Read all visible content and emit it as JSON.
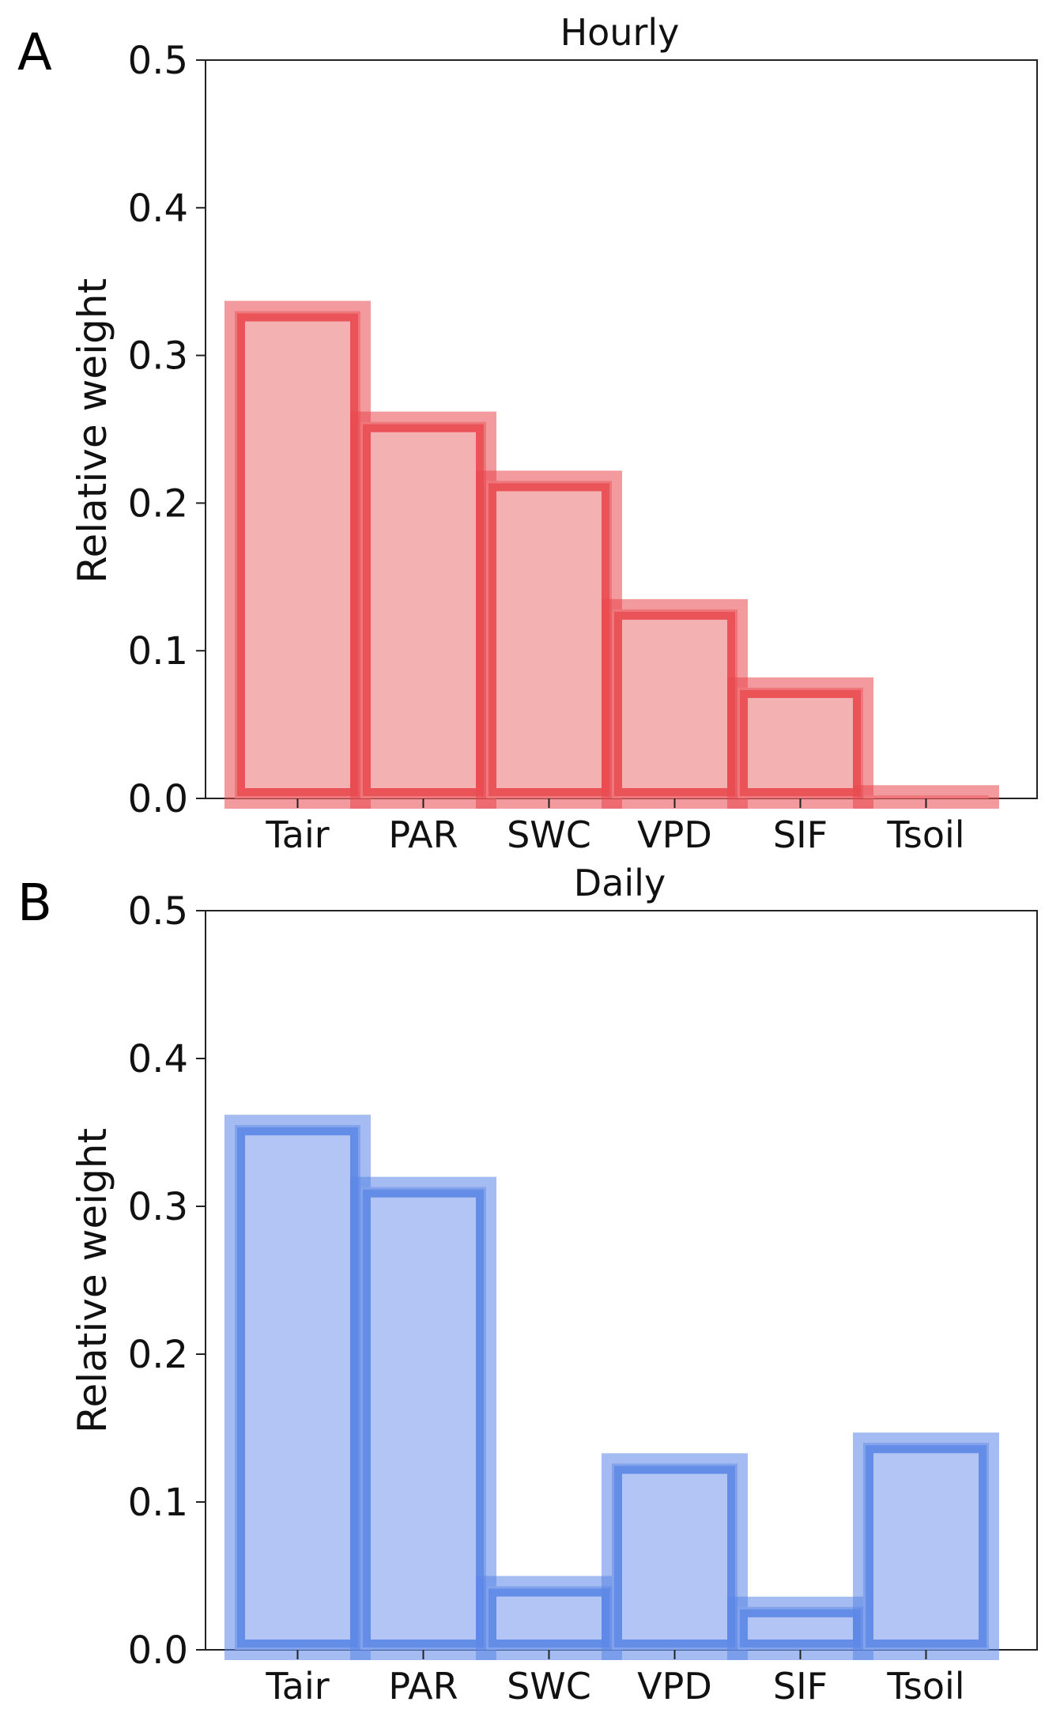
{
  "figure": {
    "panels": [
      {
        "letter": "A"
      },
      {
        "letter": "B"
      }
    ]
  },
  "chart_data": [
    {
      "type": "bar",
      "title": "Hourly",
      "ylabel": "Relative weight",
      "xlabel": "",
      "categories": [
        "Tair",
        "PAR",
        "SWC",
        "VPD",
        "SIF",
        "Tsoil"
      ],
      "values": [
        0.33,
        0.255,
        0.215,
        0.128,
        0.075,
        0.002
      ],
      "ylim": [
        0,
        0.5
      ],
      "yticks": [
        "0.0",
        "0.1",
        "0.2",
        "0.3",
        "0.4",
        "0.5"
      ],
      "fill_color": "#f4b1b1",
      "edge_color": "#e8474c",
      "grid": false
    },
    {
      "type": "bar",
      "title": "Daily",
      "ylabel": "Relative weight",
      "xlabel": "",
      "categories": [
        "Tair",
        "PAR",
        "SWC",
        "VPD",
        "SIF",
        "Tsoil"
      ],
      "values": [
        0.355,
        0.313,
        0.043,
        0.126,
        0.029,
        0.14
      ],
      "ylim": [
        0,
        0.5
      ],
      "yticks": [
        "0.0",
        "0.1",
        "0.2",
        "0.3",
        "0.4",
        "0.5"
      ],
      "fill_color": "#b3c5f4",
      "edge_color": "#5a85e6",
      "grid": false
    }
  ]
}
